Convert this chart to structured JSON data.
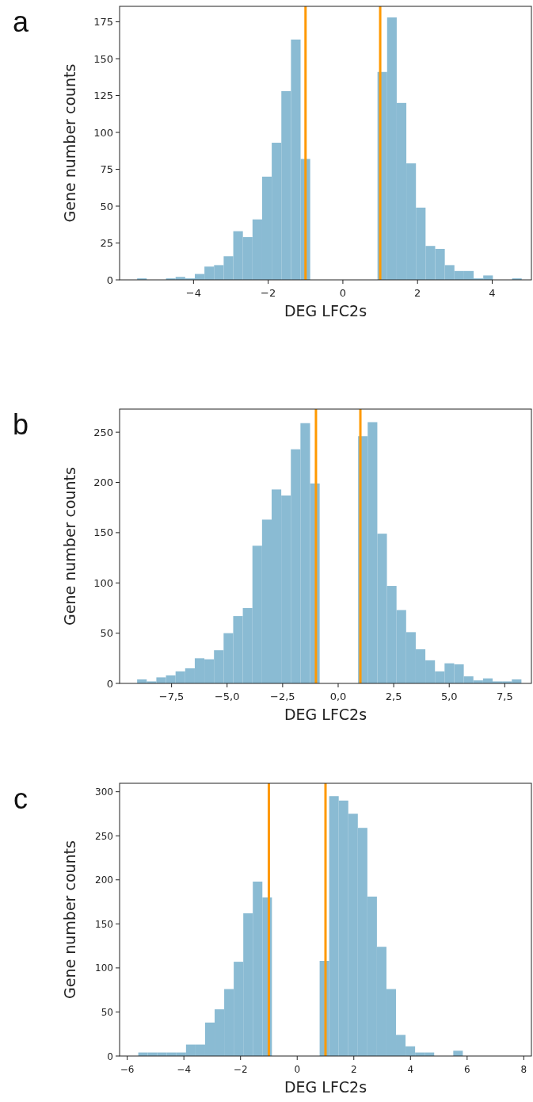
{
  "chart_data": [
    {
      "type": "histogram",
      "title": "a",
      "xlabel": "DEG LFC2s",
      "ylabel": "Gene number counts",
      "color": "#8abbd3",
      "bins": [
        -5.51,
        -5.2525,
        -4.995,
        -4.7375,
        -4.48,
        -4.2225,
        -3.965,
        -3.7075,
        -3.45,
        -3.1925,
        -2.935,
        -2.6775,
        -2.42,
        -2.1625,
        -1.905,
        -1.6475,
        -1.39,
        -1.1325,
        -0.875,
        -0.6175,
        -0.36,
        -0.1025,
        0.155,
        0.4125,
        0.67,
        0.9275,
        1.185,
        1.4425,
        1.7,
        1.9575,
        2.215,
        2.4725,
        2.73,
        2.9875,
        3.245,
        3.5025,
        3.76,
        4.0175,
        4.275,
        4.5325,
        4.79
      ],
      "values": [
        1,
        0,
        0,
        1,
        2,
        1,
        4,
        9,
        10,
        16,
        33,
        29,
        41,
        70,
        93,
        128,
        163,
        82,
        0,
        0,
        0,
        0,
        0,
        0,
        0,
        141,
        178,
        120,
        79,
        49,
        23,
        21,
        10,
        6,
        6,
        1,
        3,
        0,
        0,
        1
      ],
      "xlim": [
        -5.98,
        5.05
      ],
      "xticks": [
        {
          "value": -4,
          "label": "−4"
        },
        {
          "value": -2,
          "label": "−2"
        },
        0,
        2,
        4
      ],
      "ylim": [
        0,
        185.5
      ],
      "yticks": [
        0,
        25,
        50,
        75,
        100,
        125,
        150,
        175
      ],
      "ref_lines": [
        {
          "axis": "x",
          "value": -1,
          "color": "#ff9900"
        },
        {
          "axis": "x",
          "value": 1,
          "color": "#ff9900"
        }
      ]
    },
    {
      "type": "histogram",
      "title": "b",
      "xlabel": "DEG LFC2s",
      "ylabel": "Gene number counts",
      "color": "#8abbd3",
      "bins": [
        -9.05,
        -8.6175,
        -8.185,
        -7.7525,
        -7.32,
        -6.8875,
        -6.455,
        -6.0225,
        -5.59,
        -5.1575,
        -4.725,
        -4.2925,
        -3.86,
        -3.4275,
        -2.995,
        -2.5625,
        -2.13,
        -1.6975,
        -1.265,
        -0.8325,
        -0.4,
        0.0325,
        0.465,
        0.8975,
        1.33,
        1.7625,
        2.195,
        2.6275,
        3.06,
        3.4925,
        3.925,
        4.3575,
        4.79,
        5.2225,
        5.655,
        6.0875,
        6.52,
        6.9525,
        7.385,
        7.8175,
        8.25
      ],
      "values": [
        4,
        2,
        6,
        8,
        12,
        15,
        25,
        24,
        33,
        50,
        67,
        75,
        137,
        163,
        193,
        187,
        233,
        259,
        199,
        0,
        0,
        0,
        0,
        246,
        260,
        149,
        97,
        73,
        51,
        34,
        23,
        12,
        20,
        19,
        7,
        3,
        5,
        2,
        2,
        4
      ],
      "xlim": [
        -9.84,
        8.7
      ],
      "xticks": [
        {
          "value": -7.5,
          "label": "−7,5"
        },
        {
          "value": -5,
          "label": "−5,0"
        },
        {
          "value": -2.5,
          "label": "−2,5"
        },
        {
          "value": 0,
          "label": "0,0"
        },
        {
          "value": 2.5,
          "label": "2,5"
        },
        {
          "value": 5,
          "label": "5,0"
        },
        {
          "value": 7.5,
          "label": "7,5"
        }
      ],
      "ylim": [
        0,
        273
      ],
      "yticks": [
        0,
        50,
        100,
        150,
        200,
        250
      ],
      "ref_lines": [
        {
          "axis": "x",
          "value": -1,
          "color": "#ff9900"
        },
        {
          "axis": "x",
          "value": 1,
          "color": "#ff9900"
        }
      ]
    },
    {
      "type": "histogram",
      "title": "c",
      "xlabel": "DEG LFC2s",
      "ylabel": "Gene number counts",
      "color": "#8abbd3",
      "bins": [
        -5.61,
        -5.273,
        -4.936,
        -4.599,
        -4.262,
        -3.925,
        -3.588,
        -3.251,
        -2.914,
        -2.577,
        -2.24,
        -1.903,
        -1.566,
        -1.229,
        -0.892,
        -0.555,
        -0.218,
        0.119,
        0.456,
        0.793,
        1.13,
        1.467,
        1.804,
        2.141,
        2.478,
        2.815,
        3.152,
        3.489,
        3.826,
        4.163,
        4.5,
        4.837,
        5.174,
        5.511,
        5.848
      ],
      "values": [
        4,
        4,
        4,
        4,
        4,
        13,
        13,
        38,
        53,
        76,
        107,
        162,
        198,
        180,
        0,
        0,
        0,
        0,
        0,
        108,
        295,
        290,
        275,
        259,
        181,
        124,
        76,
        24,
        11,
        4,
        4,
        0,
        0,
        6
      ],
      "xlim": [
        -6.27,
        8.27
      ],
      "xticks": [
        {
          "value": -6,
          "label": "−6"
        },
        {
          "value": -4,
          "label": "−4"
        },
        {
          "value": -2,
          "label": "−2"
        },
        0,
        2,
        4,
        6,
        8
      ],
      "ylim": [
        0,
        309.6
      ],
      "yticks": [
        0,
        50,
        100,
        150,
        200,
        250,
        300
      ],
      "ref_lines": [
        {
          "axis": "x",
          "value": -1,
          "color": "#ff9900"
        },
        {
          "axis": "x",
          "value": 1,
          "color": "#ff9900"
        }
      ]
    }
  ]
}
